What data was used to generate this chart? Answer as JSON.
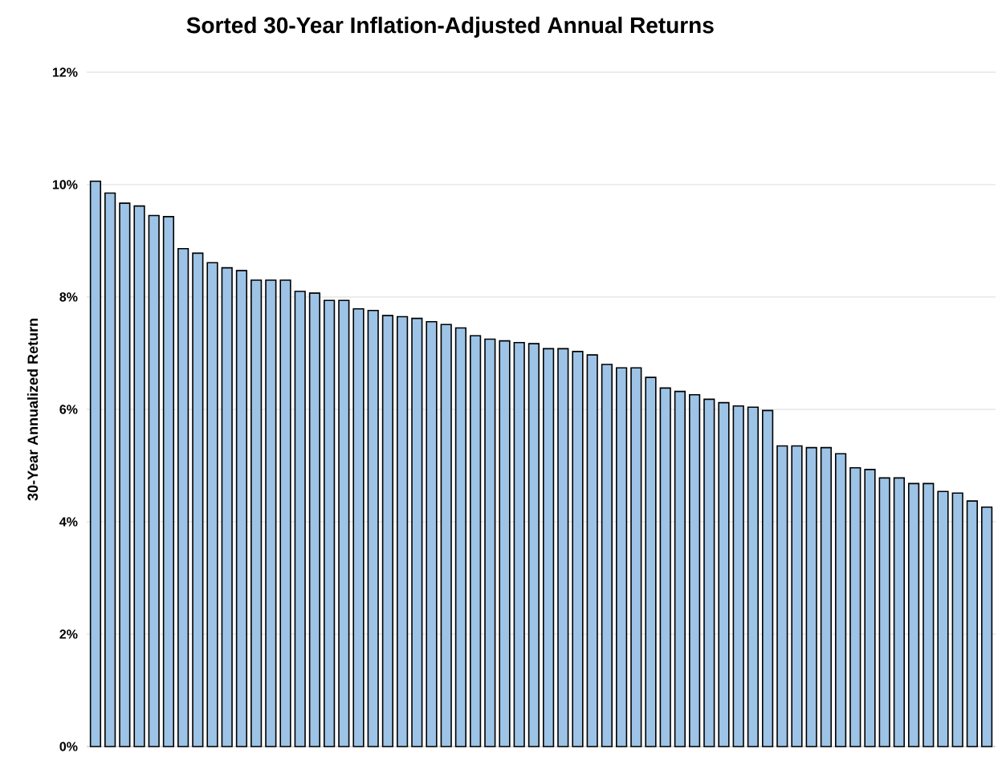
{
  "chart_data": {
    "type": "bar",
    "title": "Sorted 30-Year Inflation-Adjusted Annual Returns",
    "ylabel": "30-Year Annualized Return",
    "categories": [
      null,
      null,
      null,
      null,
      null,
      null,
      null,
      null,
      null,
      null,
      null,
      null,
      null,
      null,
      null,
      null,
      null,
      null,
      null,
      null,
      null,
      null,
      null,
      null,
      null,
      null,
      null,
      null,
      null,
      null,
      null,
      null,
      null,
      null,
      null,
      null,
      null,
      null,
      null,
      null,
      null,
      null,
      null,
      null,
      null,
      null,
      null,
      null,
      null,
      null,
      null,
      null,
      null,
      null,
      null,
      null,
      null,
      null,
      null,
      null,
      null,
      null
    ],
    "values": [
      10.06,
      9.85,
      9.67,
      9.62,
      9.45,
      9.43,
      8.86,
      8.78,
      8.61,
      8.52,
      8.47,
      8.3,
      8.3,
      8.3,
      8.1,
      8.07,
      7.94,
      7.94,
      7.79,
      7.76,
      7.67,
      7.65,
      7.62,
      7.56,
      7.51,
      7.45,
      7.31,
      7.25,
      7.22,
      7.19,
      7.17,
      7.08,
      7.08,
      7.03,
      6.97,
      6.8,
      6.74,
      6.74,
      6.57,
      6.38,
      6.32,
      6.26,
      6.18,
      6.12,
      6.06,
      6.04,
      5.98,
      5.35,
      5.35,
      5.32,
      5.32,
      5.21,
      4.96,
      4.93,
      4.78,
      4.78,
      4.68,
      4.68,
      4.54,
      4.51,
      4.37,
      4.26
    ],
    "color": "#9dc3e6",
    "ylim": [
      0,
      12
    ],
    "yticks": [
      {
        "value": 0,
        "label": "0%"
      },
      {
        "value": 2,
        "label": "2%"
      },
      {
        "value": 4,
        "label": "4%"
      },
      {
        "value": 6,
        "label": "6%"
      },
      {
        "value": 8,
        "label": "8%"
      },
      {
        "value": 10,
        "label": "10%"
      },
      {
        "value": 12,
        "label": "12%"
      }
    ],
    "grid": "y",
    "tick_labels": "y"
  }
}
